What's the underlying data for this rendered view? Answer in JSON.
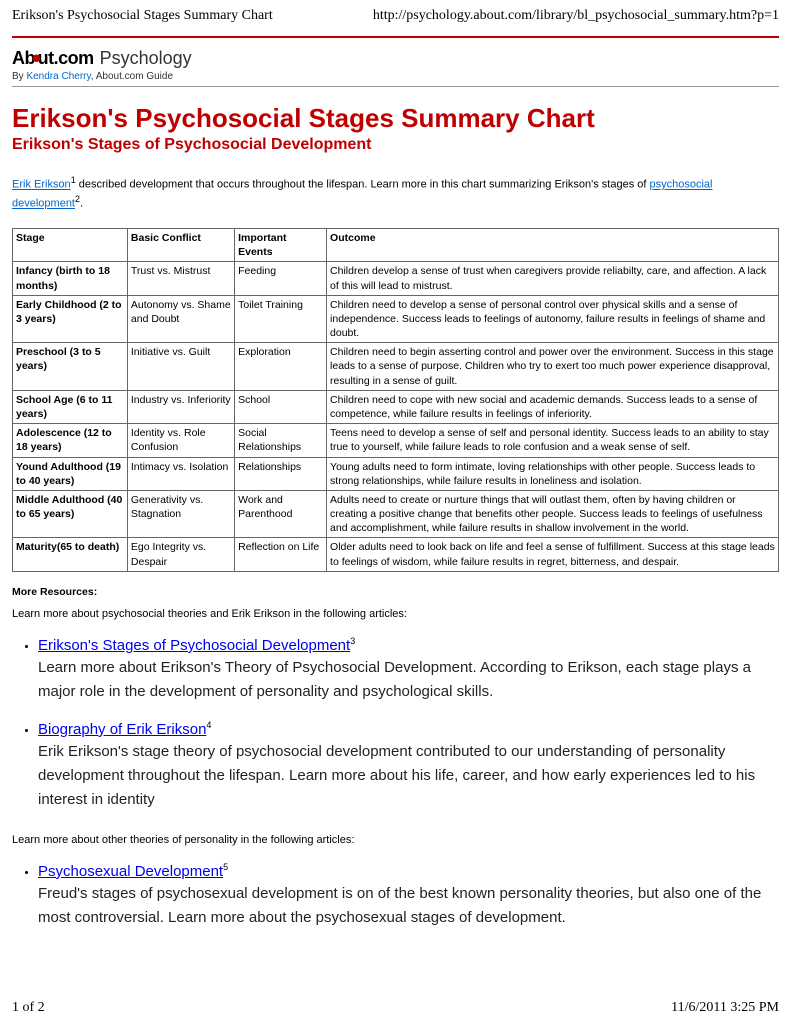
{
  "print_header": {
    "title": "Erikson's Psychosocial Stages Summary Chart",
    "url": "http://psychology.about.com/library/bl_psychosocial_summary.htm?p=1"
  },
  "print_footer": {
    "page": "1 of 2",
    "datetime": "11/6/2011 3:25 PM"
  },
  "logo": {
    "brand_prefix": "Ab",
    "brand_suffix": "ut",
    "brand_tld": ".com",
    "section": "Psychology"
  },
  "byline": {
    "prefix": "By ",
    "author": "Kendra Cherry",
    "suffix": ", About.com Guide"
  },
  "h1": "Erikson's Psychosocial Stages Summary Chart",
  "h2": "Erikson's Stages of Psychosocial Development",
  "intro": {
    "link1": "Erik Erikson",
    "sup1": "1",
    "mid": " described development that occurs throughout the lifespan. Learn more in this chart summarizing Erikson's stages of ",
    "link2": "psychosocial development",
    "sup2": "2",
    "end": "."
  },
  "table": {
    "headers": [
      "Stage",
      "Basic Conflict",
      "Important Events",
      "Outcome"
    ],
    "rows": [
      {
        "stage": "Infancy (birth to 18 months)",
        "conflict": "Trust vs. Mistrust",
        "events": "Feeding",
        "outcome": "Children develop a sense of trust when caregivers provide reliabilty, care, and affection. A lack of this will lead to mistrust."
      },
      {
        "stage": "Early Childhood (2 to 3 years)",
        "conflict": "Autonomy vs. Shame and Doubt",
        "events": "Toilet Training",
        "outcome": "Children need to develop a sense of personal control over physical skills and a sense of independence. Success leads to feelings of autonomy, failure results in feelings of shame and doubt."
      },
      {
        "stage": "Preschool (3 to 5 years)",
        "conflict": "Initiative vs. Guilt",
        "events": "Exploration",
        "outcome": "Children need to begin asserting control and power over the environment. Success in this stage leads to a sense of purpose. Children who try to exert too much power experience disapproval, resulting in a sense of guilt."
      },
      {
        "stage": "School Age (6 to 11 years)",
        "conflict": "Industry vs. Inferiority",
        "events": "School",
        "outcome": "Children need to cope with new social and academic demands. Success leads to a sense of competence, while failure results in feelings of inferiority."
      },
      {
        "stage": "Adolescence (12 to 18 years)",
        "conflict": "Identity vs. Role Confusion",
        "events": "Social Relationships",
        "outcome": "Teens need to develop a sense of self and personal identity. Success leads to an ability to stay true to yourself, while failure leads to role confusion and a weak sense of self."
      },
      {
        "stage": "Yound Adulthood (19 to 40 years)",
        "conflict": "Intimacy vs. Isolation",
        "events": "Relationships",
        "outcome": "Young adults need to form intimate, loving relationships with other people. Success leads to strong relationships, while failure results in loneliness and isolation."
      },
      {
        "stage": "Middle Adulthood (40 to 65 years)",
        "conflict": "Generativity vs. Stagnation",
        "events": "Work and Parenthood",
        "outcome": "Adults need to create or nurture things that will outlast them, often by having children or creating a positive change that benefits other people. Success leads to feelings of usefulness and accomplishment, while failure results in shallow involvement in the world."
      },
      {
        "stage": "Maturity(65 to death)",
        "conflict": "Ego Integrity vs. Despair",
        "events": "Reflection on Life",
        "outcome": "Older adults need to look back on life and feel a sense of fulfillment. Success at this stage leads to feelings of wisdom, while failure results in regret, bitterness, and despair."
      }
    ]
  },
  "more_resources_label": "More Resources:",
  "sections": [
    {
      "intro": "Learn more about psychosocial theories and Erik Erikson in the following articles:",
      "items": [
        {
          "link": "Erikson's Stages of Psychosocial Development",
          "sup": "3",
          "desc": "Learn more about Erikson's Theory of Psychosocial Development. According to Erikson, each stage plays a major role in the development of personality and psychological skills."
        },
        {
          "link": "Biography of Erik Erikson",
          "sup": "4",
          "desc": "Erik Erikson's stage theory of psychosocial development contributed to our understanding of personality development throughout the lifespan. Learn more about his life, career, and how early experiences led to his interest in identity"
        }
      ]
    },
    {
      "intro": "Learn more about other theories of personality in the following articles:",
      "items": [
        {
          "link": "Psychosexual Development",
          "sup": "5",
          "desc": "Freud's stages of psychosexual development is on of the best known personality theories, but also one of the most controversial. Learn more about the psychosexual stages of development."
        }
      ]
    }
  ]
}
